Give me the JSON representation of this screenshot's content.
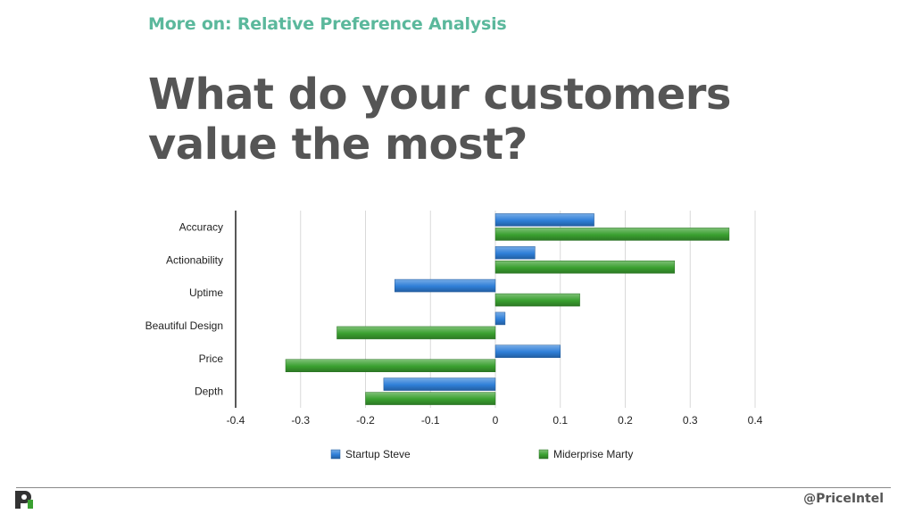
{
  "slide": {
    "kicker": "More on: Relative Preference Analysis",
    "title": "What do your customers value the most?",
    "handle": "@PriceIntel",
    "kicker_color": "#5bb89c",
    "title_color": "#555555"
  },
  "chart_data": {
    "type": "bar",
    "orientation": "horizontal",
    "title": "",
    "xlabel": "",
    "ylabel": "",
    "categories": [
      "Accuracy",
      "Actionability",
      "Uptime",
      "Beautiful Design",
      "Price",
      "Depth"
    ],
    "series": [
      {
        "name": "Startup Steve",
        "color": "#2f7fd8",
        "values": [
          0.152,
          0.061,
          -0.155,
          0.015,
          0.1,
          -0.172
        ]
      },
      {
        "name": "Miderprise Marty",
        "color": "#3aa030",
        "values": [
          0.36,
          0.276,
          0.13,
          -0.244,
          -0.323,
          -0.2
        ]
      }
    ],
    "xlim": [
      -0.4,
      0.4
    ],
    "xticks": [
      "-0.4",
      "-0.3",
      "-0.2",
      "-0.1",
      "0",
      "0.1",
      "0.2",
      "0.3",
      "0.4"
    ],
    "grid": true,
    "legend_position": "bottom"
  }
}
